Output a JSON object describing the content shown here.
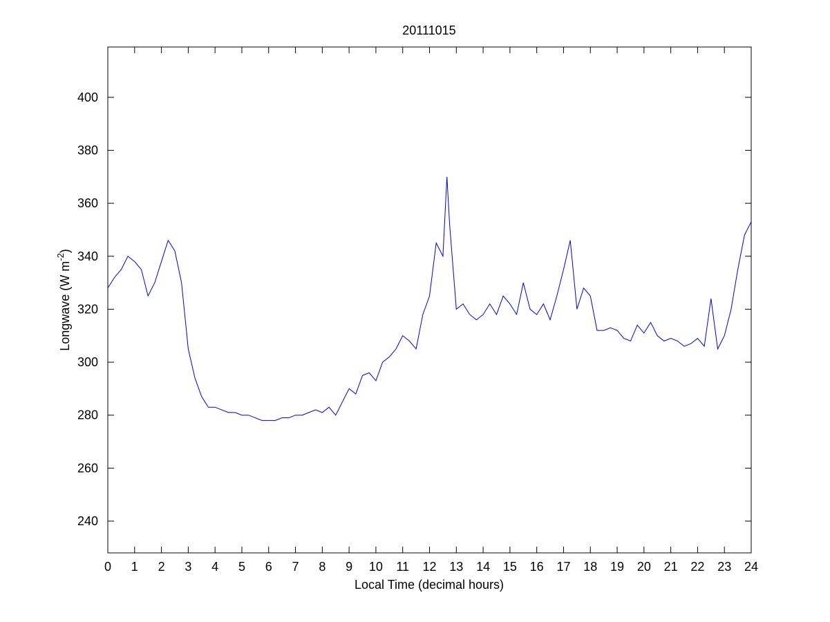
{
  "chart_data": {
    "type": "line",
    "title": "20111015",
    "xlabel": "Local Time (decimal hours)",
    "ylabel": {
      "text": "Longwave (W m",
      "sup": "-2",
      "close": ")"
    },
    "xlim": [
      0,
      24
    ],
    "ylim": [
      228,
      419
    ],
    "xticks": [
      0,
      1,
      2,
      3,
      4,
      5,
      6,
      7,
      8,
      9,
      10,
      11,
      12,
      13,
      14,
      15,
      16,
      17,
      18,
      19,
      20,
      21,
      22,
      23,
      24
    ],
    "yticks": [
      240,
      260,
      280,
      300,
      320,
      340,
      360,
      380,
      400
    ],
    "grid": false,
    "x": [
      0,
      0.25,
      0.5,
      0.75,
      1,
      1.25,
      1.5,
      1.75,
      2,
      2.25,
      2.5,
      2.75,
      3,
      3.25,
      3.5,
      3.75,
      4,
      4.25,
      4.5,
      4.75,
      5,
      5.25,
      5.5,
      5.75,
      6,
      6.25,
      6.5,
      6.75,
      7,
      7.25,
      7.5,
      7.75,
      8,
      8.25,
      8.5,
      8.75,
      9,
      9.25,
      9.5,
      9.75,
      10,
      10.25,
      10.5,
      10.75,
      11,
      11.25,
      11.5,
      11.75,
      12,
      12.25,
      12.5,
      12.65,
      12.75,
      13,
      13.25,
      13.5,
      13.75,
      14,
      14.25,
      14.5,
      14.75,
      15,
      15.25,
      15.5,
      15.75,
      16,
      16.25,
      16.5,
      16.75,
      17,
      17.25,
      17.5,
      17.75,
      18,
      18.25,
      18.5,
      18.75,
      19,
      19.25,
      19.5,
      19.75,
      20,
      20.25,
      20.5,
      20.75,
      21,
      21.25,
      21.5,
      21.75,
      22,
      22.25,
      22.5,
      22.75,
      23,
      23.25,
      23.5,
      23.75,
      24
    ],
    "series": [
      {
        "color": "#0000cc",
        "values": [
          328,
          332,
          335,
          340,
          338,
          335,
          325,
          330,
          338,
          346,
          342,
          330,
          305,
          294,
          287,
          283,
          283,
          282,
          281,
          281,
          280,
          280,
          279,
          278,
          278,
          278,
          279,
          279,
          280,
          280,
          281,
          282,
          281,
          283,
          280,
          285,
          290,
          288,
          295,
          296,
          293,
          300,
          302,
          305,
          310,
          308,
          305,
          318,
          325,
          345,
          340,
          370,
          352,
          320,
          322,
          318,
          316,
          318,
          322,
          318,
          325,
          322,
          318,
          330,
          320,
          318,
          322,
          316,
          325,
          335,
          346,
          320,
          328,
          325,
          312,
          312,
          313,
          312,
          309,
          308,
          314,
          311,
          315,
          310,
          308,
          309,
          308,
          306,
          307,
          309,
          306,
          324,
          305,
          310,
          320,
          335,
          348,
          353
        ]
      }
    ]
  }
}
